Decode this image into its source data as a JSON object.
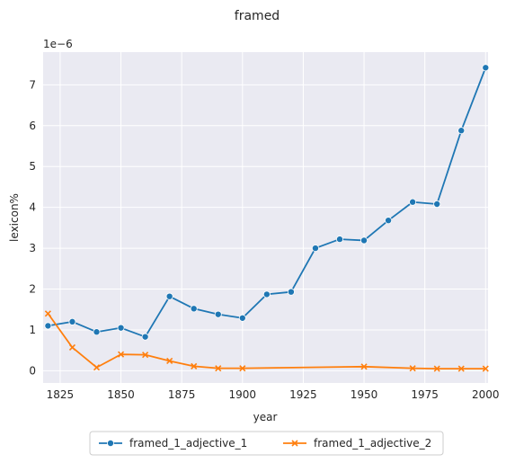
{
  "chart_data": {
    "type": "line",
    "title": "framed",
    "xlabel": "year",
    "ylabel": "lexicon%",
    "y_offset_label": "1e−6",
    "xlim": [
      1818,
      2001
    ],
    "ylim": [
      -0.3,
      7.8
    ],
    "x_ticks": [
      1825,
      1850,
      1875,
      1900,
      1925,
      1950,
      1975,
      2000
    ],
    "y_ticks": [
      0,
      1,
      2,
      3,
      4,
      5,
      6,
      7
    ],
    "grid": true,
    "background": "#eaeaf2",
    "legend_position": "bottom-center",
    "series": [
      {
        "name": "framed_1_adjective_1",
        "color": "#1f77b4",
        "marker": "circle",
        "x": [
          1820,
          1830,
          1840,
          1850,
          1860,
          1870,
          1880,
          1890,
          1900,
          1910,
          1920,
          1930,
          1940,
          1950,
          1960,
          1970,
          1980,
          1990,
          2000
        ],
        "y": [
          1.1,
          1.2,
          0.95,
          1.05,
          0.83,
          1.82,
          1.52,
          1.38,
          1.29,
          1.87,
          1.93,
          3.0,
          3.22,
          3.19,
          3.68,
          4.13,
          4.08,
          5.88,
          7.42
        ]
      },
      {
        "name": "framed_1_adjective_2",
        "color": "#ff7f0e",
        "marker": "x",
        "x": [
          1820,
          1830,
          1840,
          1850,
          1860,
          1870,
          1880,
          1890,
          1900,
          1950,
          1970,
          1980,
          1990,
          2000
        ],
        "y": [
          1.4,
          0.57,
          0.08,
          0.4,
          0.39,
          0.24,
          0.11,
          0.06,
          0.06,
          0.1,
          0.06,
          0.05,
          0.05,
          0.05
        ]
      }
    ]
  }
}
